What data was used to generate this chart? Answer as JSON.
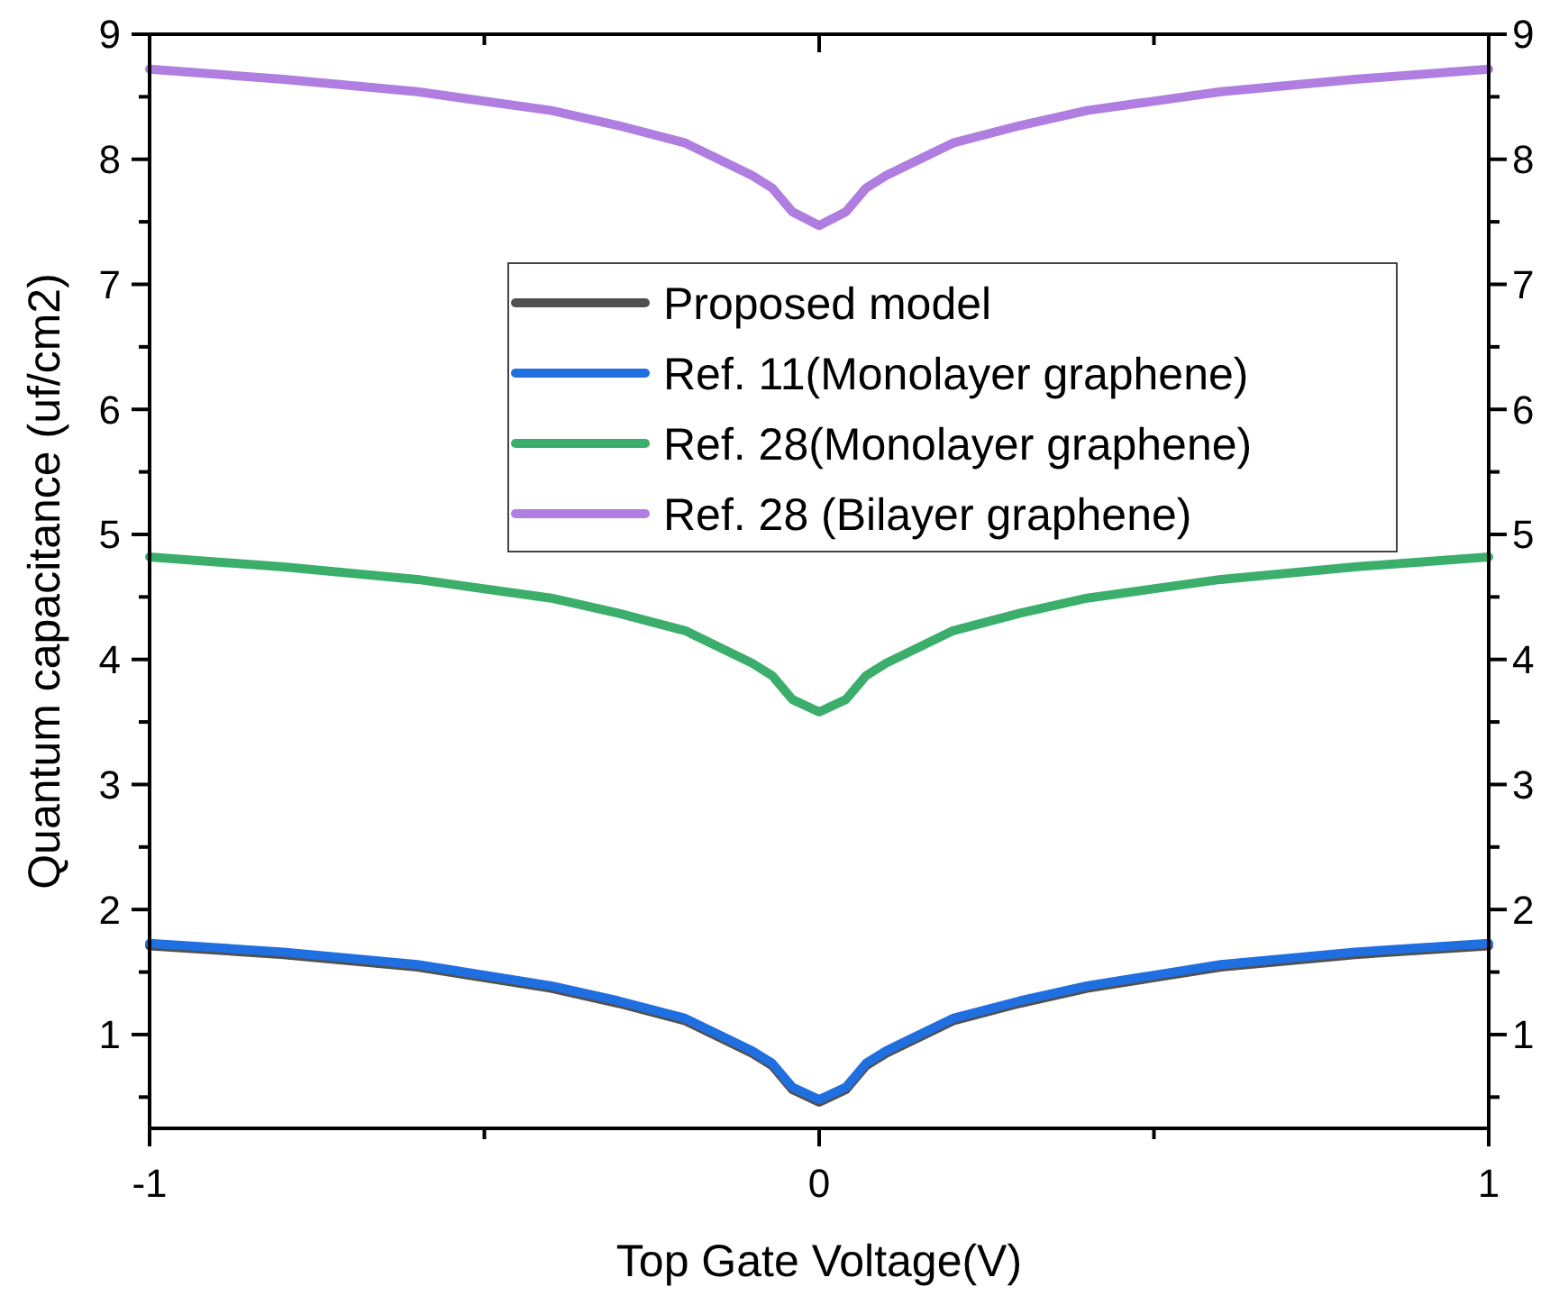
{
  "chart_data": {
    "type": "line",
    "xlabel": "Top Gate Voltage(V)",
    "ylabel": "Quantum capacitance (uf/cm2)",
    "x": [
      -1,
      -0.8,
      -0.6,
      -0.4,
      -0.3,
      -0.2,
      -0.1,
      -0.07,
      -0.04,
      0,
      0.04,
      0.07,
      0.1,
      0.2,
      0.3,
      0.4,
      0.6,
      0.8,
      1
    ],
    "series": [
      {
        "name": "Proposed model",
        "color": "#505050",
        "values": [
          1.71,
          1.64,
          1.54,
          1.37,
          1.25,
          1.11,
          0.85,
          0.75,
          0.56,
          0.46,
          0.56,
          0.75,
          0.85,
          1.11,
          1.25,
          1.37,
          1.54,
          1.64,
          1.71
        ]
      },
      {
        "name": "Ref. 11(Monolayer graphene)",
        "color": "#1f6fe0",
        "values": [
          1.73,
          1.66,
          1.56,
          1.39,
          1.27,
          1.13,
          0.87,
          0.77,
          0.58,
          0.48,
          0.58,
          0.77,
          0.87,
          1.13,
          1.27,
          1.39,
          1.56,
          1.66,
          1.73
        ]
      },
      {
        "name": "Ref. 28(Monolayer graphene)",
        "color": "#3aae6a",
        "values": [
          4.82,
          4.74,
          4.64,
          4.49,
          4.37,
          4.23,
          3.97,
          3.87,
          3.68,
          3.58,
          3.68,
          3.87,
          3.97,
          4.23,
          4.37,
          4.49,
          4.64,
          4.74,
          4.82
        ]
      },
      {
        "name": "Ref. 28 (Bilayer graphene)",
        "color": "#b07de0",
        "values": [
          8.72,
          8.64,
          8.54,
          8.39,
          8.27,
          8.13,
          7.87,
          7.77,
          7.58,
          7.47,
          7.58,
          7.77,
          7.87,
          8.13,
          8.27,
          8.39,
          8.54,
          8.64,
          8.72
        ]
      }
    ],
    "xlim": [
      -1,
      1
    ],
    "xticks": [
      -1,
      {
        "value": -0.5,
        "label": null
      },
      0,
      {
        "value": 0.5,
        "label": null
      },
      1
    ],
    "ylim": [
      0.25,
      9
    ],
    "yticks": [
      {
        "value": 0.5,
        "label": null
      },
      1,
      {
        "value": 1.5,
        "label": null
      },
      2,
      {
        "value": 2.5,
        "label": null
      },
      3,
      {
        "value": 3.5,
        "label": null
      },
      4,
      {
        "value": 4.5,
        "label": null
      },
      5,
      {
        "value": 5.5,
        "label": null
      },
      6,
      {
        "value": 6.5,
        "label": null
      },
      7,
      {
        "value": 7.5,
        "label": null
      },
      8,
      {
        "value": 8.5,
        "label": null
      },
      9
    ],
    "y2lim": [
      0.25,
      9
    ],
    "y2ticks": [
      {
        "value": 0.5,
        "label": null
      },
      1,
      {
        "value": 1.5,
        "label": null
      },
      2,
      {
        "value": 2.5,
        "label": null
      },
      3,
      {
        "value": 3.5,
        "label": null
      },
      4,
      {
        "value": 4.5,
        "label": null
      },
      5,
      {
        "value": 5.5,
        "label": null
      },
      6,
      {
        "value": 6.5,
        "label": null
      },
      7,
      {
        "value": 7.5,
        "label": null
      },
      8,
      {
        "value": 8.5,
        "label": null
      },
      9
    ],
    "legend": "center",
    "grid": false,
    "line_style": "solid",
    "marker": "none"
  }
}
